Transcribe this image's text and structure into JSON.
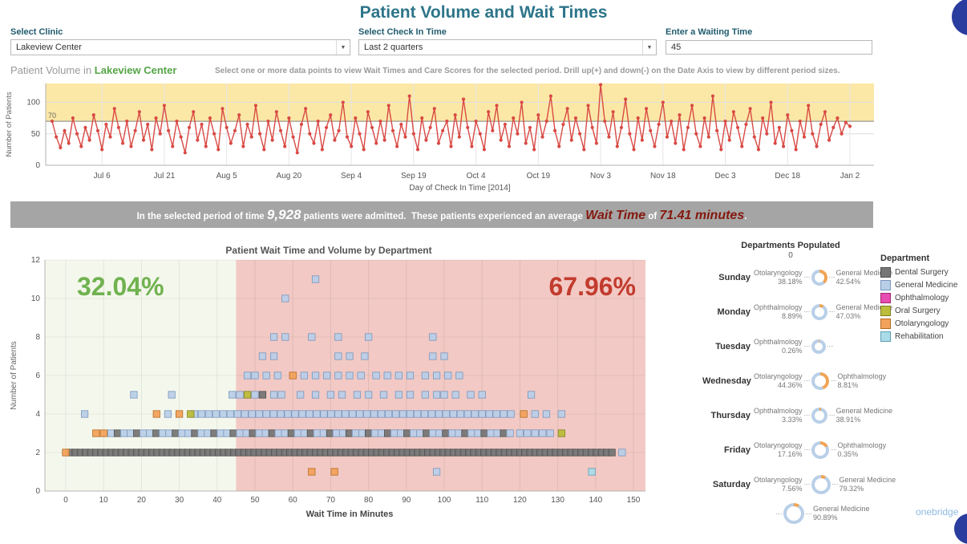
{
  "page": {
    "title": "Patient Volume and Wait Times"
  },
  "filters": {
    "clinic": {
      "label": "Select Clinic",
      "value": "Lakeview Center"
    },
    "checkin": {
      "label": "Select Check In Time",
      "value": "Last 2 quarters"
    },
    "waiting": {
      "label": "Enter a Waiting Time",
      "value": "45"
    }
  },
  "volume_section": {
    "title_prefix": "Patient Volume in ",
    "clinic": "Lakeview Center",
    "instructions": "Select one or more data points to view Wait Times and Care Scores for the selected period.  Drill up(+) and down(-) on the Date Axis to view by different period sizes."
  },
  "banner": {
    "part1": "In the selected period of time ",
    "count": "9,928",
    "part2": " patients were admitted.  These patients experienced an average ",
    "wait_label": "Wait Time",
    "part3": " of ",
    "wait_value": "71.41 minutes",
    "part4": "."
  },
  "chart_data": [
    {
      "type": "line",
      "title": "Patient Volume in Lakeview Center",
      "xlabel": "Day of Check In Time [2014]",
      "ylabel": "Number of Patients",
      "x_ticks": [
        "Jul 6",
        "Jul 21",
        "Aug 5",
        "Aug 20",
        "Sep 4",
        "Sep 19",
        "Oct 4",
        "Oct 19",
        "Nov 3",
        "Nov 18",
        "Dec 3",
        "Dec 18",
        "Jan 2"
      ],
      "y_ticks": [
        0,
        50,
        100
      ],
      "ylim": [
        0,
        130
      ],
      "reference_line": 70,
      "band": {
        "from": 70,
        "to": 130,
        "color": "#fbe8a6"
      },
      "series_color": "#d94a45",
      "values": [
        70,
        45,
        28,
        55,
        35,
        75,
        50,
        30,
        60,
        40,
        80,
        55,
        25,
        65,
        45,
        90,
        60,
        35,
        70,
        30,
        55,
        85,
        40,
        65,
        25,
        75,
        50,
        95,
        55,
        30,
        70,
        45,
        20,
        60,
        85,
        40,
        65,
        30,
        75,
        50,
        25,
        90,
        60,
        35,
        55,
        80,
        30,
        65,
        45,
        95,
        50,
        25,
        70,
        40,
        85,
        55,
        30,
        75,
        45,
        20,
        65,
        90,
        50,
        35,
        70,
        25,
        60,
        80,
        40,
        55,
        100,
        45,
        30,
        75,
        50,
        25,
        85,
        60,
        35,
        70,
        40,
        95,
        55,
        30,
        65,
        45,
        110,
        50,
        25,
        75,
        40,
        60,
        90,
        35,
        55,
        70,
        30,
        80,
        45,
        105,
        60,
        30,
        70,
        50,
        25,
        85,
        55,
        95,
        40,
        65,
        30,
        75,
        50,
        100,
        35,
        60,
        25,
        80,
        45,
        70,
        110,
        55,
        30,
        65,
        90,
        40,
        75,
        50,
        25,
        95,
        60,
        35,
        128,
        70,
        45,
        85,
        30,
        60,
        105,
        50,
        25,
        75,
        40,
        90,
        55,
        30,
        65,
        100,
        45,
        70,
        35,
        80,
        25,
        60,
        95,
        50,
        30,
        75,
        45,
        110,
        55,
        25,
        70,
        40,
        85,
        60,
        30,
        65,
        90,
        45,
        25,
        75,
        50,
        100,
        35,
        60,
        30,
        80,
        55,
        25,
        70,
        45,
        95,
        50,
        30,
        65,
        85,
        40,
        60,
        75,
        50,
        68,
        62
      ]
    },
    {
      "type": "scatter",
      "title": "Patient Wait Time and Volume by Department",
      "xlabel": "Wait Time in Minutes",
      "ylabel": "Number of Patients",
      "xlim": [
        -5,
        152
      ],
      "ylim": [
        0,
        12
      ],
      "x_ticks": [
        0,
        10,
        20,
        30,
        40,
        50,
        60,
        70,
        80,
        90,
        100,
        110,
        120,
        130,
        140,
        150
      ],
      "y_ticks": [
        0,
        2,
        4,
        6,
        8,
        10,
        12
      ],
      "threshold": 45,
      "left_share": "32.04%",
      "right_share": "67.96%",
      "left_color": "#6fb24f",
      "right_color": "#c23b2e",
      "zones": {
        "left_bg": "#f4f7ec",
        "right_bg": "#f2c9c4"
      },
      "departments": [
        {
          "name": "Dental Surgery",
          "color": "#767676",
          "stroke": "#4f4f4f"
        },
        {
          "name": "General Medicine",
          "color": "#b9cfe8",
          "stroke": "#7a97bd"
        },
        {
          "name": "Ophthalmology",
          "color": "#e64cb1",
          "stroke": "#a6246f"
        },
        {
          "name": "Oral Surgery",
          "color": "#bcbd3a",
          "stroke": "#7f801f"
        },
        {
          "name": "Otolaryngology",
          "color": "#f2a25c",
          "stroke": "#b56a22"
        },
        {
          "name": "Rehabilitation",
          "color": "#aadbe8",
          "stroke": "#5f9fb4"
        }
      ],
      "runs": [
        {
          "y": 2,
          "x0": 1.2,
          "x1": 145,
          "step": 1.35,
          "dept": 0
        },
        {
          "y": 3,
          "x0": 12,
          "x1": 118,
          "step": 1.7,
          "dept": 1,
          "alt": 0
        },
        {
          "y": 4,
          "x0": 34,
          "x1": 119,
          "step": 1.9,
          "dept": 1
        }
      ],
      "points": [
        [
          65,
          1,
          4
        ],
        [
          71,
          1,
          4
        ],
        [
          98,
          1,
          1
        ],
        [
          139,
          1,
          5
        ],
        [
          0,
          2,
          4
        ],
        [
          147,
          2,
          1
        ],
        [
          8,
          3,
          4
        ],
        [
          10,
          3,
          4
        ],
        [
          120,
          3,
          1
        ],
        [
          122,
          3,
          1
        ],
        [
          124,
          3,
          1
        ],
        [
          126,
          3,
          1
        ],
        [
          128,
          3,
          1
        ],
        [
          131,
          3,
          3
        ],
        [
          5,
          4,
          1
        ],
        [
          24,
          4,
          4
        ],
        [
          27,
          4,
          1
        ],
        [
          30,
          4,
          4
        ],
        [
          33,
          4,
          3
        ],
        [
          121,
          4,
          4
        ],
        [
          124,
          4,
          1
        ],
        [
          127,
          4,
          1
        ],
        [
          131,
          4,
          1
        ],
        [
          18,
          5,
          1
        ],
        [
          28,
          5,
          1
        ],
        [
          44,
          5,
          1
        ],
        [
          46,
          5,
          1
        ],
        [
          48,
          5,
          3
        ],
        [
          50,
          5,
          1
        ],
        [
          52,
          5,
          0
        ],
        [
          55,
          5,
          1
        ],
        [
          57,
          5,
          1
        ],
        [
          62,
          5,
          1
        ],
        [
          66,
          5,
          1
        ],
        [
          70,
          5,
          1
        ],
        [
          73,
          5,
          1
        ],
        [
          77,
          5,
          1
        ],
        [
          80,
          5,
          1
        ],
        [
          84,
          5,
          1
        ],
        [
          88,
          5,
          1
        ],
        [
          91,
          5,
          1
        ],
        [
          95,
          5,
          1
        ],
        [
          98,
          5,
          1
        ],
        [
          100,
          5,
          1
        ],
        [
          103,
          5,
          1
        ],
        [
          107,
          5,
          1
        ],
        [
          110,
          5,
          1
        ],
        [
          123,
          5,
          1
        ],
        [
          48,
          6,
          1
        ],
        [
          50,
          6,
          1
        ],
        [
          53,
          6,
          1
        ],
        [
          56,
          6,
          1
        ],
        [
          60,
          6,
          4
        ],
        [
          63,
          6,
          1
        ],
        [
          66,
          6,
          1
        ],
        [
          69,
          6,
          1
        ],
        [
          72,
          6,
          1
        ],
        [
          75,
          6,
          1
        ],
        [
          78,
          6,
          1
        ],
        [
          82,
          6,
          1
        ],
        [
          85,
          6,
          1
        ],
        [
          88,
          6,
          1
        ],
        [
          91,
          6,
          1
        ],
        [
          95,
          6,
          1
        ],
        [
          98,
          6,
          1
        ],
        [
          101,
          6,
          1
        ],
        [
          104,
          6,
          1
        ],
        [
          52,
          7,
          1
        ],
        [
          55,
          7,
          1
        ],
        [
          72,
          7,
          1
        ],
        [
          75,
          7,
          1
        ],
        [
          79,
          7,
          1
        ],
        [
          97,
          7,
          1
        ],
        [
          100,
          7,
          1
        ],
        [
          55,
          8,
          1
        ],
        [
          58,
          8,
          1
        ],
        [
          65,
          8,
          1
        ],
        [
          72,
          8,
          1
        ],
        [
          80,
          8,
          1
        ],
        [
          97,
          8,
          1
        ],
        [
          58,
          10,
          1
        ],
        [
          66,
          11,
          1
        ]
      ]
    },
    {
      "type": "donut",
      "title": "Departments Populated",
      "axis_zero": "0",
      "colors": {
        "segment_a": "#f0a455",
        "segment_b": "#b9cfe8"
      },
      "rows": [
        {
          "day": "Sunday",
          "left_dept": "Otolaryngology",
          "left_pct": "38.18%",
          "right_dept": "General Medicine",
          "right_pct": "42.54%",
          "orange": 38,
          "size": 20
        },
        {
          "day": "Monday",
          "left_dept": "Ophthalmology",
          "left_pct": "8.89%",
          "right_dept": "General Medicine",
          "right_pct": "47.03%",
          "orange": 9,
          "size": 20
        },
        {
          "day": "Tuesday",
          "left_dept": "Ophthalmology",
          "left_pct": "0.26%",
          "right_dept": "",
          "right_pct": "",
          "orange": 2,
          "size": 18
        },
        {
          "day": "Wednesday",
          "left_dept": "Otolaryngology",
          "left_pct": "44.36%",
          "right_dept": "Ophthalmology",
          "right_pct": "8.81%",
          "orange": 44,
          "size": 22
        },
        {
          "day": "Thursday",
          "left_dept": "Ophthalmology",
          "left_pct": "3.33%",
          "right_dept": "General Medicine",
          "right_pct": "38.91%",
          "orange": 4,
          "size": 20
        },
        {
          "day": "Friday",
          "left_dept": "Otolaryngology",
          "left_pct": "17.16%",
          "right_dept": "Ophthalmology",
          "right_pct": "0.35%",
          "orange": 17,
          "size": 22
        },
        {
          "day": "Saturday",
          "left_dept": "Otolaryngology",
          "left_pct": "7.56%",
          "right_dept": "General Medicine",
          "right_pct": "79.32%",
          "orange": 8,
          "size": 24
        },
        {
          "day": "",
          "left_dept": "",
          "left_pct": "",
          "right_dept": "General Medicine",
          "right_pct": "90.89%",
          "orange": 9,
          "size": 26
        }
      ]
    }
  ],
  "legend": {
    "title": "Department",
    "items": [
      {
        "name": "Dental Surgery",
        "color": "#767676",
        "stroke": "#4f4f4f"
      },
      {
        "name": "General Medicine",
        "color": "#b9cfe8",
        "stroke": "#7a97bd"
      },
      {
        "name": "Ophthalmology",
        "color": "#e64cb1",
        "stroke": "#a6246f"
      },
      {
        "name": "Oral Surgery",
        "color": "#bcbd3a",
        "stroke": "#7f801f"
      },
      {
        "name": "Otolaryngology",
        "color": "#f2a25c",
        "stroke": "#b56a22"
      },
      {
        "name": "Rehabilitation",
        "color": "#aadbe8",
        "stroke": "#5f9fb4"
      }
    ]
  },
  "branding": {
    "logo": "onebridge",
    "accent_blue": "#2a3c9e"
  }
}
